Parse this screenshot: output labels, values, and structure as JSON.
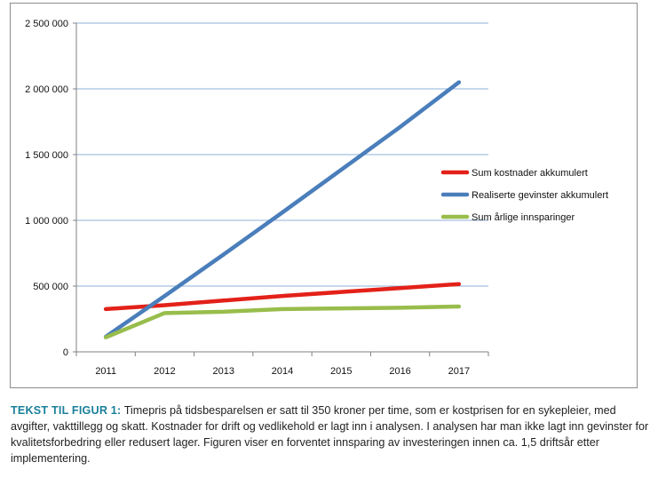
{
  "chart_data": {
    "type": "line",
    "title": "",
    "xlabel": "",
    "ylabel": "",
    "categories": [
      "2011",
      "2012",
      "2013",
      "2014",
      "2015",
      "2016",
      "2017"
    ],
    "ylim": [
      0,
      2500000
    ],
    "yticks": [
      0,
      500000,
      1000000,
      1500000,
      2000000,
      2500000
    ],
    "ytick_labels": [
      "0",
      "500 000",
      "1 000 000",
      "1 500 000",
      "2 000 000",
      "2 500 000"
    ],
    "grid": true,
    "legend_position": "right",
    "series": [
      {
        "name": "Sum kostnader akkumulert",
        "color": "#e32119",
        "values": [
          325000,
          355000,
          390000,
          425000,
          455000,
          485000,
          515000
        ]
      },
      {
        "name": "Realiserte gevinster akkumulert",
        "color": "#4a7ebb",
        "values": [
          115000,
          425000,
          740000,
          1060000,
          1385000,
          1710000,
          2050000
        ]
      },
      {
        "name": "Sum årlige innsparinger",
        "color": "#98bd4b",
        "values": [
          110000,
          295000,
          305000,
          325000,
          330000,
          335000,
          345000
        ]
      }
    ]
  },
  "caption": {
    "title": "TEKST TIL FIGUR 1:",
    "text": " Timepris på tidsbesparelsen er satt til 350 kroner per time, som er kostprisen for en sykepleier, med avgifter, vakttillegg og skatt. Kostnader for drift og vedlikehold er lagt inn i analysen. I analysen har man ikke lagt inn gevinster for kvalitetsforbedring eller redusert lager. Figuren viser en forventet innsparing av investeringen innen ca. 1,5 driftsår etter implementering."
  }
}
